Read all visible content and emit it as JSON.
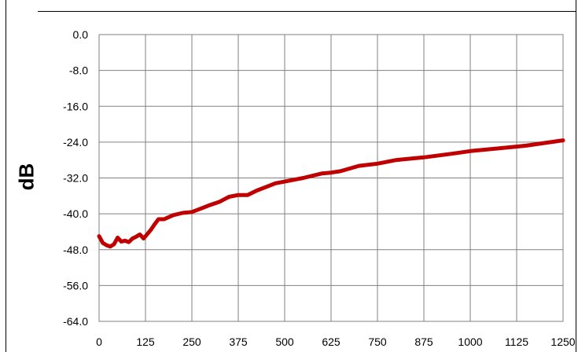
{
  "chart_data": {
    "type": "line",
    "title": "",
    "xlabel": "",
    "ylabel": "dB",
    "xlim": [
      0,
      1250
    ],
    "ylim": [
      -64,
      0
    ],
    "x_ticks": [
      0,
      125,
      250,
      375,
      500,
      625,
      750,
      875,
      1000,
      1125,
      1250
    ],
    "x_tick_labels": [
      "0",
      "125",
      "250",
      "375",
      "500",
      "625",
      "750",
      "875",
      "1000",
      "1125",
      "1250"
    ],
    "y_ticks": [
      0,
      -8,
      -16,
      -24,
      -32,
      -40,
      -48,
      -56,
      -64
    ],
    "y_tick_labels": [
      "0.0",
      "-8.0",
      "-16.0",
      "-24.0",
      "-32.0",
      "-40.0",
      "-48.0",
      "-56.0",
      "-64.0"
    ],
    "grid": true,
    "legend": "none",
    "series": [
      {
        "color": "#c00000",
        "x": [
          0,
          10,
          20,
          30,
          40,
          50,
          60,
          70,
          80,
          90,
          100,
          110,
          120,
          130,
          140,
          150,
          160,
          175,
          200,
          225,
          250,
          275,
          300,
          325,
          350,
          375,
          400,
          425,
          450,
          475,
          500,
          550,
          600,
          625,
          650,
          700,
          750,
          800,
          875,
          950,
          1000,
          1050,
          1100,
          1150,
          1200,
          1250
        ],
        "y": [
          -45.0,
          -46.5,
          -47.0,
          -47.3,
          -46.8,
          -45.3,
          -46.2,
          -46.0,
          -46.3,
          -45.5,
          -45.1,
          -44.6,
          -45.5,
          -44.5,
          -43.5,
          -42.3,
          -41.2,
          -41.2,
          -40.3,
          -39.8,
          -39.6,
          -38.8,
          -38.0,
          -37.3,
          -36.2,
          -35.8,
          -35.8,
          -34.8,
          -34.0,
          -33.2,
          -32.8,
          -32.0,
          -31.0,
          -30.8,
          -30.5,
          -29.3,
          -28.8,
          -28.0,
          -27.4,
          -26.6,
          -26.0,
          -25.6,
          -25.2,
          -24.8,
          -24.2,
          -23.6
        ]
      }
    ]
  }
}
